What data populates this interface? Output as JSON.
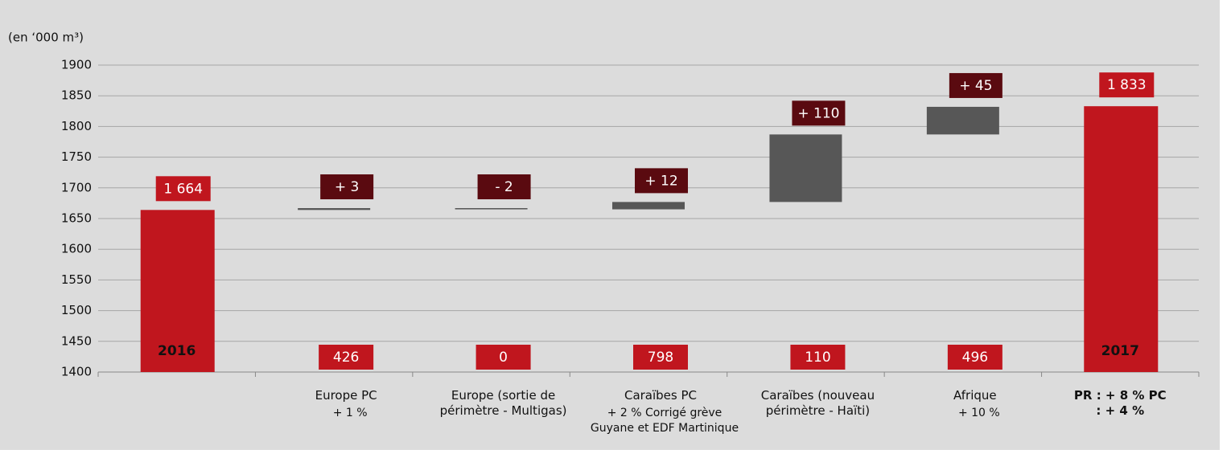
{
  "chart_data": {
    "type": "waterfall",
    "unit_label": "(en ‘000 m³)",
    "categories": [
      "2016",
      "Europe PC",
      "Europe (sortie de périmètre - Multigas)",
      "Caraïbes PC",
      "Caraïbes (nouveau périmètre - Haïti)",
      "Afrique",
      "2017"
    ],
    "sublabels": [
      null,
      "+ 1 %",
      null,
      "+ 2 % Corrigé grève Guyane et EDF Martinique",
      null,
      "+ 10 %",
      "PR : + 8 % PC : + 4 %"
    ],
    "values": [
      1664,
      3,
      -2,
      12,
      110,
      45,
      1833
    ],
    "value_labels": [
      "1 664",
      "+ 3",
      "- 2",
      "+ 12",
      "+ 110",
      "+ 45",
      "1 833"
    ],
    "totals": [
      true,
      false,
      false,
      false,
      false,
      false,
      true
    ],
    "secondary_labels": [
      null,
      426,
      0,
      798,
      110,
      496,
      null
    ],
    "total_color": "#c0161e",
    "delta_color": "#575757",
    "delta_label_color": "#5a0a10",
    "ylim": [
      1400,
      1900
    ],
    "yticks": [
      1400,
      1450,
      1500,
      1550,
      1600,
      1650,
      1700,
      1750,
      1800,
      1850,
      1900
    ],
    "grid": true
  }
}
